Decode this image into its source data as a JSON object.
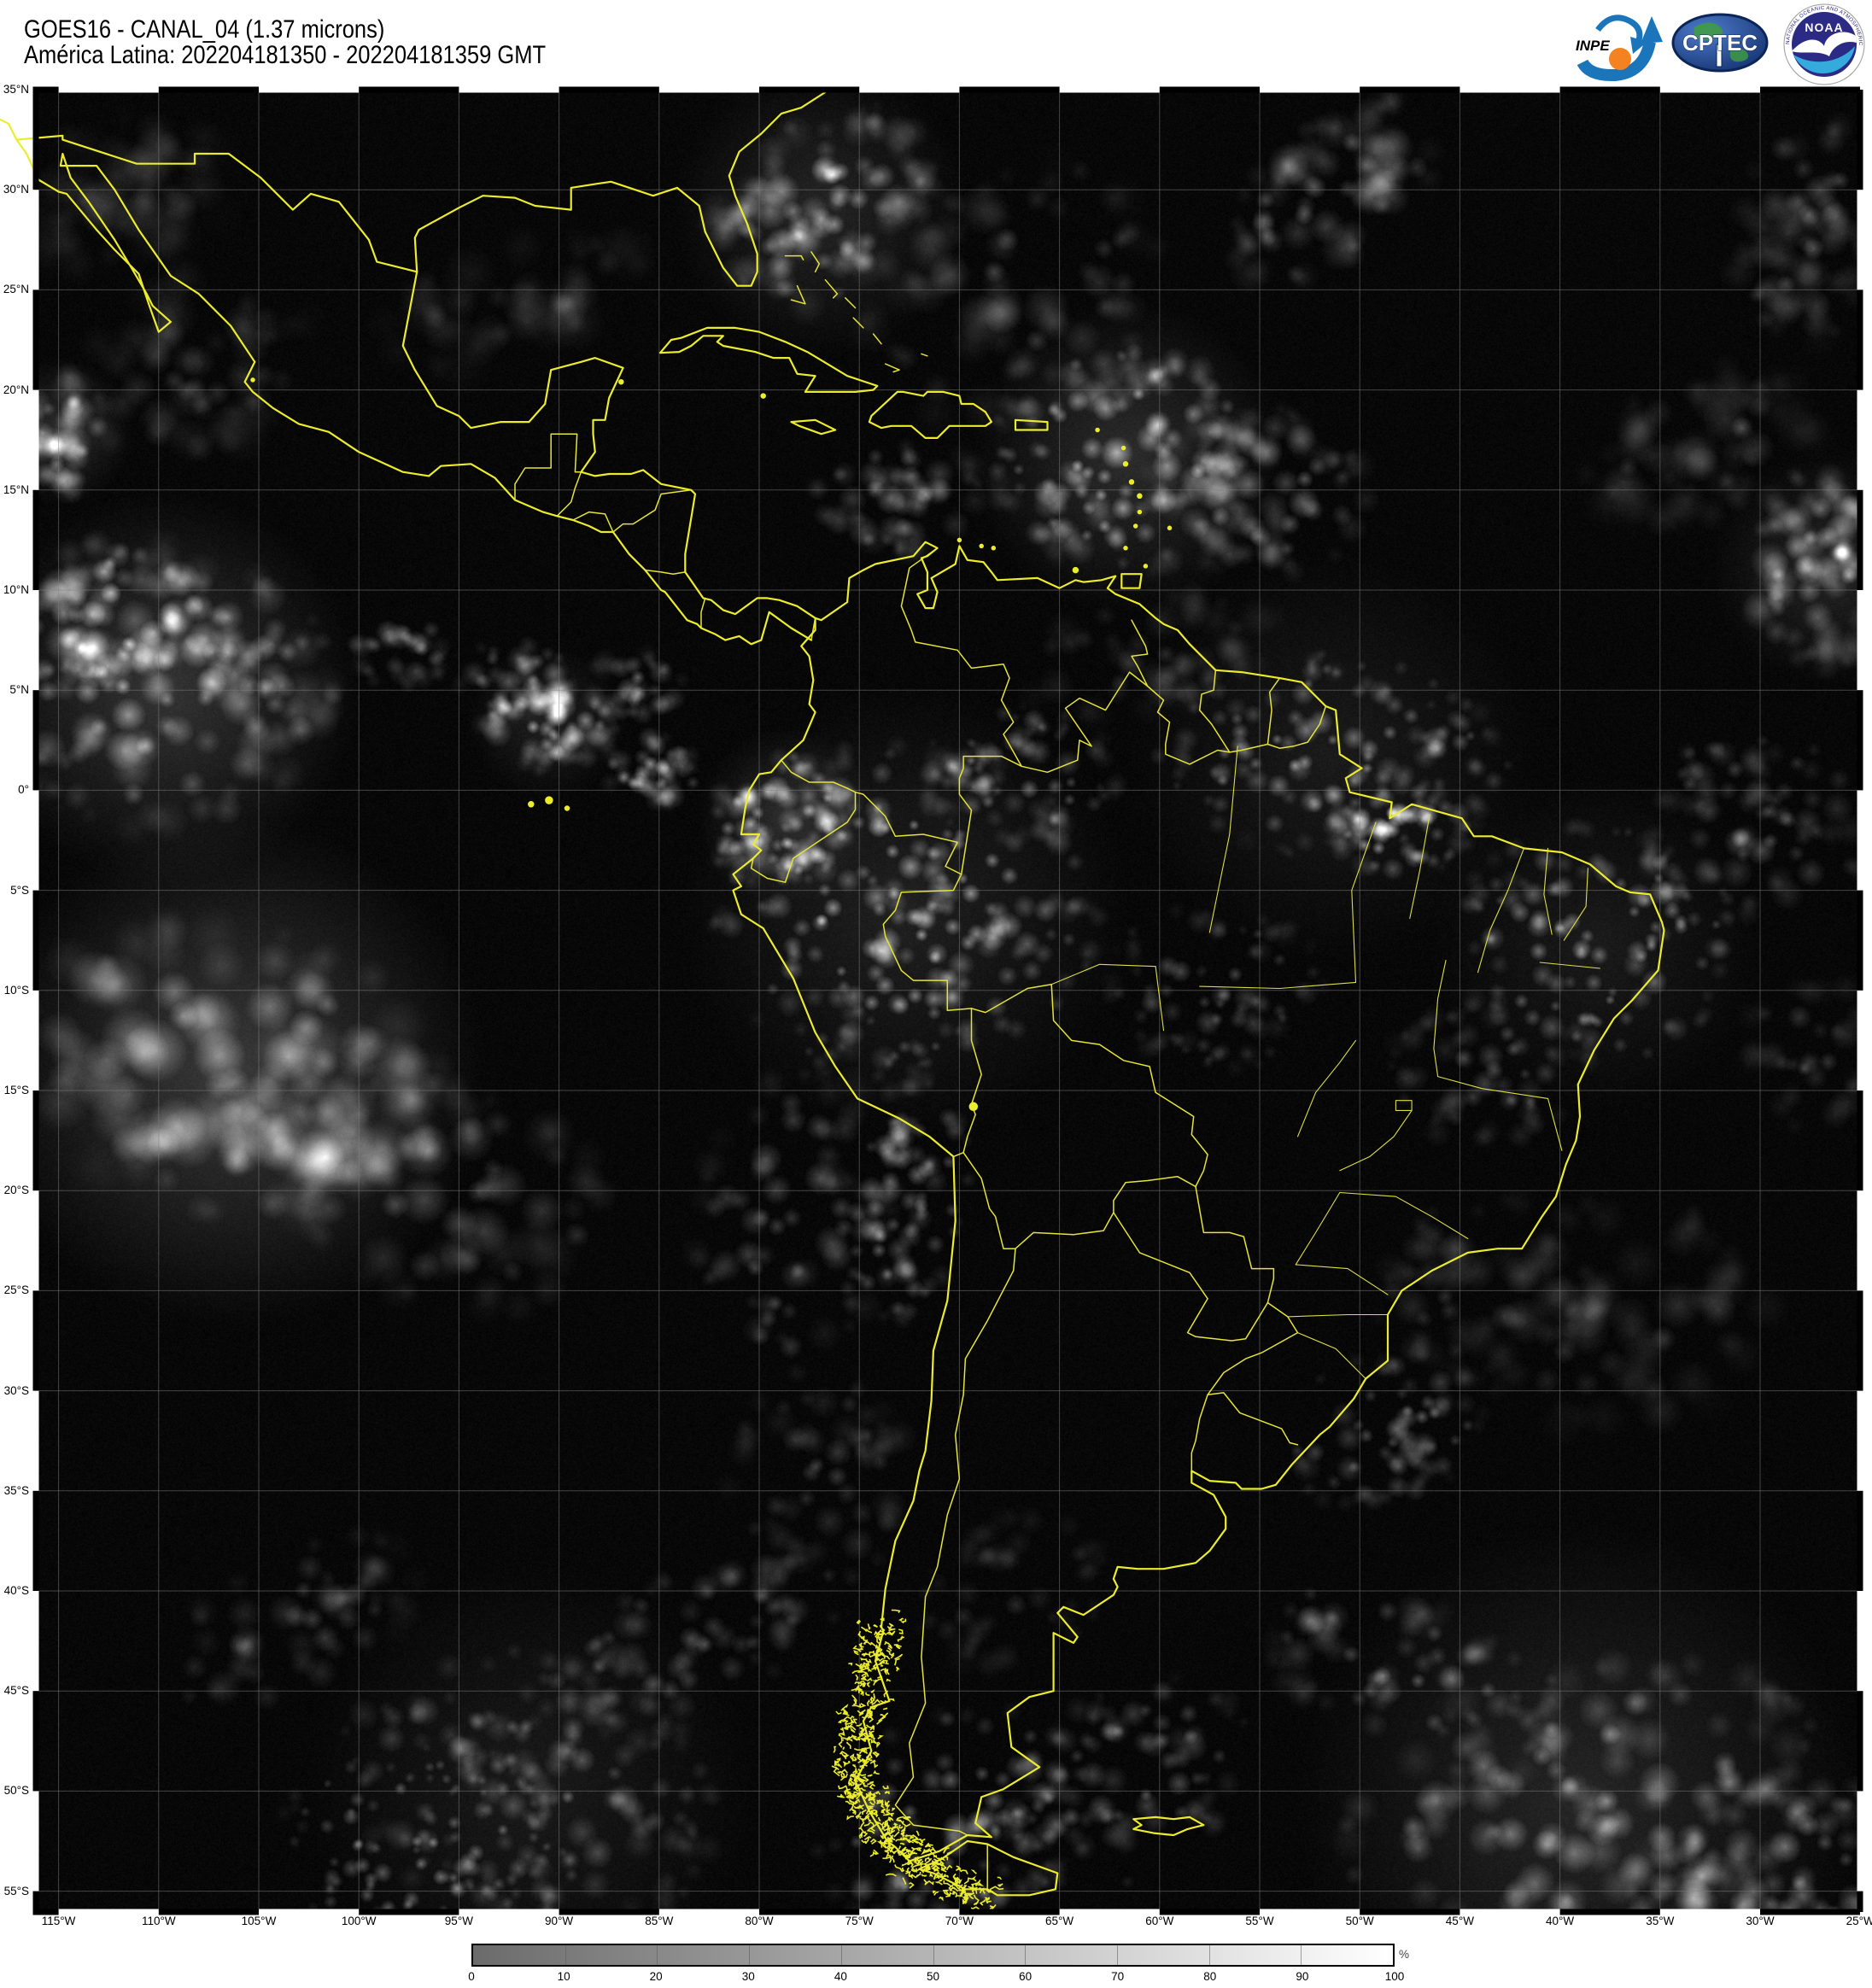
{
  "header": {
    "title_line1": "GOES16 - CANAL_04 (1.37 microns)",
    "title_line2": "América Latina: 202204181350 - 202204181359 GMT"
  },
  "logos": {
    "inpe_label": "INPE",
    "cptec_label": "CPTEC",
    "noaa_label": "NOAA",
    "noaa_ring_top": "NATIONAL OCEANIC AND ATMOSPHERIC ADMINISTRATION",
    "noaa_ring_bottom": "U.S. DEPARTMENT OF COMMERCE"
  },
  "map": {
    "lat_labels": [
      "35°N",
      "30°N",
      "25°N",
      "20°N",
      "15°N",
      "10°N",
      "5°N",
      "0°",
      "5°S",
      "10°S",
      "15°S",
      "20°S",
      "25°S",
      "30°S",
      "35°S",
      "40°S",
      "45°S",
      "50°S",
      "55°S"
    ],
    "lon_labels": [
      "115°W",
      "110°W",
      "105°W",
      "100°W",
      "95°W",
      "90°W",
      "85°W",
      "80°W",
      "75°W",
      "70°W",
      "65°W",
      "60°W",
      "55°W",
      "50°W",
      "45°W",
      "40°W",
      "35°W",
      "30°W",
      "25°W"
    ]
  },
  "colorbar": {
    "tick_labels": [
      "0",
      "10",
      "20",
      "30",
      "40",
      "50",
      "60",
      "70",
      "80",
      "90",
      "100"
    ],
    "unit": "%",
    "min_color": "#6b6b6b",
    "max_color": "#ffffff"
  },
  "colors": {
    "outline_yellow": "#ecec2f",
    "map_background": "#000000",
    "inpe_blue": "#1b75bb",
    "inpe_orange": "#f58220",
    "cptec_blue": "#16336f",
    "noaa_navy": "#2b2b86",
    "noaa_cyan": "#35aadc"
  }
}
